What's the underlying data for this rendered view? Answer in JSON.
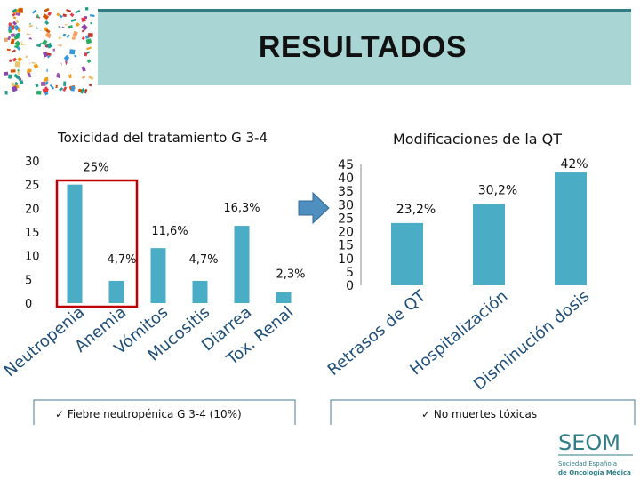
{
  "slide_title": "RESULTADOS",
  "logo": {
    "letters": [
      "S",
      "E",
      "O",
      "M"
    ]
  },
  "chart_data": [
    {
      "type": "bar",
      "title": "Toxicidad del tratamiento G 3-4",
      "categories": [
        "Neutropenia",
        "Anemia",
        "Vómitos",
        "Mucositis",
        "Diarrea",
        "Tox. Renal"
      ],
      "values": [
        25,
        4.7,
        11.6,
        4.7,
        16.3,
        2.3
      ],
      "data_labels": [
        "25%",
        "4,7%",
        "11,6%",
        "4,7%",
        "16,3%",
        "2,3%"
      ],
      "yticks": [
        "0",
        "5",
        "10",
        "15",
        "20",
        "25",
        "30"
      ],
      "ylim": [
        0,
        30
      ],
      "bar_color": "#4bacc6",
      "highlight_color": "#c00000",
      "grid": false,
      "note": "✓ Fiebre neutropénica G 3-4 (10%)"
    },
    {
      "type": "bar",
      "title": "Modificaciones de la QT",
      "categories": [
        "Retrasos de QT",
        "Hospitalización",
        "Disminución dosis"
      ],
      "values": [
        23.2,
        30.2,
        42
      ],
      "data_labels": [
        "23,2%",
        "30,2%",
        "42%"
      ],
      "yticks": [
        "0",
        "5",
        "10",
        "15",
        "20",
        "25",
        "30",
        "35",
        "40",
        "45"
      ],
      "ylim": [
        0,
        45
      ],
      "bar_color": "#4bacc6",
      "grid": false,
      "note": "✓ No muertes tóxicas"
    }
  ],
  "footer": {
    "brand": "SEOM",
    "tagline_1": "Sociedad Española",
    "tagline_2": "de Oncología Médica",
    "accent": "#2f7d86"
  }
}
